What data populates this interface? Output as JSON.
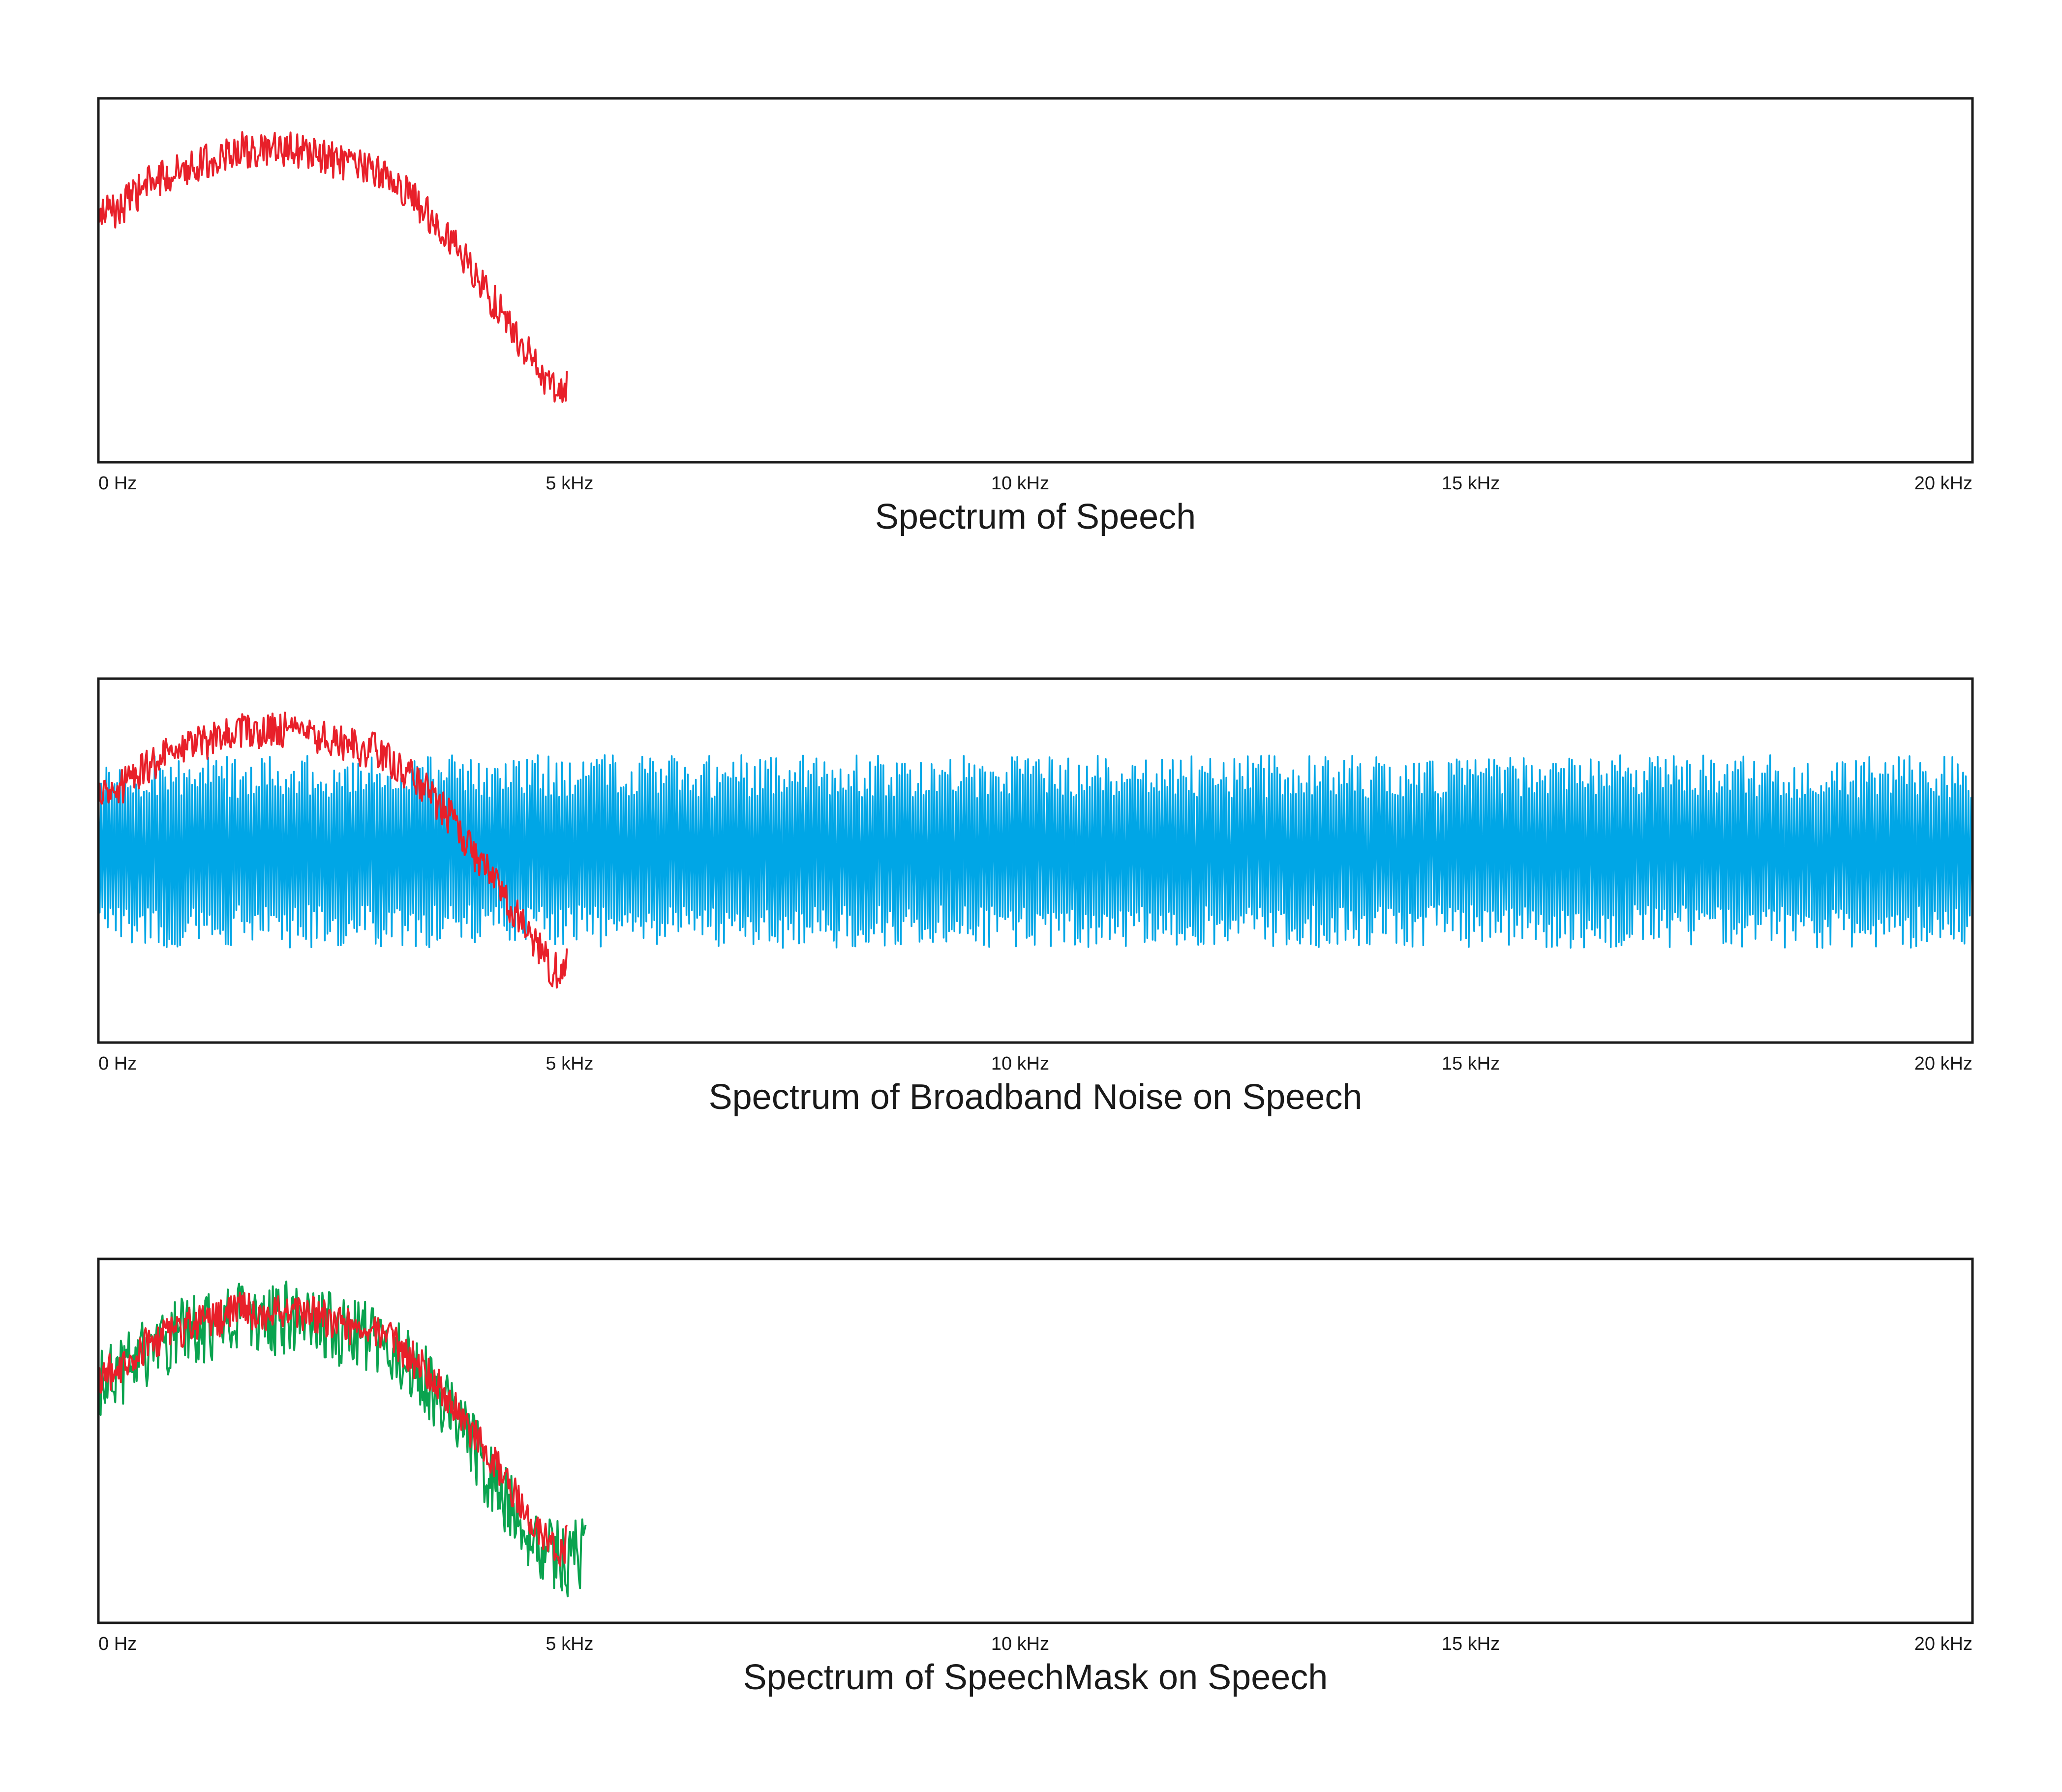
{
  "chart_data": [
    {
      "type": "line",
      "title": "Spectrum of Speech",
      "xlabel": "",
      "ylabel": "",
      "x_ticks": [
        "0 Hz",
        "5 kHz",
        "10 kHz",
        "15 kHz",
        "20 kHz"
      ],
      "x_tick_values_khz": [
        0,
        5,
        10,
        15,
        20
      ],
      "xlim": [
        0,
        20
      ],
      "ylim": [
        0,
        1
      ],
      "grid": false,
      "legend": "none",
      "series": [
        {
          "color": "#e8202a",
          "x": [
            0,
            0.25,
            0.5,
            0.75,
            1.0,
            1.25,
            1.5,
            1.75,
            2.0,
            2.25,
            2.5,
            2.75,
            3.0,
            3.25,
            3.5,
            3.75,
            4.0,
            4.25,
            4.5,
            4.75,
            4.85,
            4.95,
            5.0
          ],
          "y": [
            0.68,
            0.7,
            0.76,
            0.79,
            0.82,
            0.83,
            0.86,
            0.85,
            0.86,
            0.85,
            0.83,
            0.81,
            0.8,
            0.75,
            0.69,
            0.62,
            0.52,
            0.43,
            0.33,
            0.24,
            0.2,
            0.2,
            0.22
          ],
          "jitter": 0.05
        }
      ]
    },
    {
      "type": "line",
      "title": "Spectrum of Broadband Noise on Speech",
      "xlabel": "",
      "ylabel": "",
      "x_ticks": [
        "0 Hz",
        "5 kHz",
        "10 kHz",
        "15 kHz",
        "20 kHz"
      ],
      "x_tick_values_khz": [
        0,
        5,
        10,
        15,
        20
      ],
      "xlim": [
        0,
        20
      ],
      "ylim": [
        0,
        1
      ],
      "grid": false,
      "legend": "none",
      "series": [
        {
          "color": "#00a6e6",
          "x": [
            0,
            20
          ],
          "y": [
            0.53,
            0.53
          ],
          "band": [
            0.26,
            0.79
          ],
          "jitter": 0.27
        },
        {
          "color": "#e8202a",
          "x": [
            0,
            0.25,
            0.5,
            0.75,
            1.0,
            1.25,
            1.5,
            1.75,
            2.0,
            2.25,
            2.5,
            2.75,
            3.0,
            3.25,
            3.5,
            3.75,
            4.0,
            4.25,
            4.5,
            4.75,
            4.85,
            4.95,
            5.0
          ],
          "y": [
            0.68,
            0.7,
            0.76,
            0.79,
            0.82,
            0.83,
            0.86,
            0.85,
            0.86,
            0.85,
            0.83,
            0.81,
            0.8,
            0.75,
            0.69,
            0.62,
            0.52,
            0.43,
            0.33,
            0.24,
            0.2,
            0.2,
            0.22
          ],
          "jitter": 0.05
        }
      ]
    },
    {
      "type": "line",
      "title": "Spectrum of SpeechMask on Speech",
      "xlabel": "",
      "ylabel": "",
      "x_ticks": [
        "0 Hz",
        "5 kHz",
        "10 kHz",
        "15 kHz",
        "20 kHz"
      ],
      "x_tick_values_khz": [
        0,
        5,
        10,
        15,
        20
      ],
      "xlim": [
        0,
        20
      ],
      "ylim": [
        0,
        1
      ],
      "grid": false,
      "legend": "none",
      "series": [
        {
          "color": "#0aa34f",
          "x": [
            0,
            0.25,
            0.5,
            0.75,
            1.0,
            1.25,
            1.5,
            1.75,
            2.0,
            2.25,
            2.5,
            2.75,
            3.0,
            3.25,
            3.5,
            3.75,
            4.0,
            4.25,
            4.5,
            4.75,
            5.0,
            5.2
          ],
          "y": [
            0.66,
            0.69,
            0.74,
            0.78,
            0.8,
            0.81,
            0.84,
            0.83,
            0.84,
            0.83,
            0.81,
            0.79,
            0.77,
            0.72,
            0.66,
            0.57,
            0.48,
            0.37,
            0.27,
            0.2,
            0.17,
            0.2
          ],
          "jitter": 0.1
        },
        {
          "color": "#e8202a",
          "x": [
            0,
            0.25,
            0.5,
            0.75,
            1.0,
            1.25,
            1.5,
            1.75,
            2.0,
            2.25,
            2.5,
            2.75,
            3.0,
            3.25,
            3.5,
            3.75,
            4.0,
            4.25,
            4.5,
            4.75,
            4.85,
            4.95,
            5.0
          ],
          "y": [
            0.68,
            0.7,
            0.76,
            0.79,
            0.82,
            0.83,
            0.86,
            0.85,
            0.86,
            0.85,
            0.83,
            0.81,
            0.8,
            0.75,
            0.69,
            0.62,
            0.52,
            0.43,
            0.33,
            0.24,
            0.2,
            0.2,
            0.22
          ],
          "jitter": 0.05
        }
      ]
    }
  ]
}
